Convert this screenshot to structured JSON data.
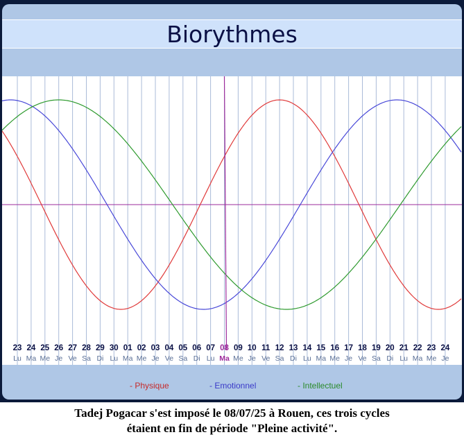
{
  "chart_data": {
    "type": "line",
    "title": "Biorythmes",
    "x": [
      "23",
      "24",
      "25",
      "26",
      "27",
      "28",
      "29",
      "30",
      "01",
      "02",
      "03",
      "04",
      "05",
      "06",
      "07",
      "08",
      "09",
      "10",
      "11",
      "12",
      "13",
      "14",
      "15",
      "16",
      "17",
      "18",
      "19",
      "20",
      "21",
      "22",
      "23",
      "24"
    ],
    "weekdays": [
      "Lu",
      "Ma",
      "Me",
      "Je",
      "Ve",
      "Sa",
      "Di",
      "Lu",
      "Ma",
      "Me",
      "Je",
      "Ve",
      "Sa",
      "Di",
      "Lu",
      "Ma",
      "Me",
      "Je",
      "Ve",
      "Sa",
      "Di",
      "Lu",
      "Ma",
      "Me",
      "Je",
      "Ve",
      "Sa",
      "Di",
      "Lu",
      "Ma",
      "Me",
      "Je"
    ],
    "highlight_day_index": 15,
    "ylim": [
      -1,
      1
    ],
    "series": [
      {
        "name": "- Physique",
        "color": "#e03a3a",
        "period_days": 23,
        "phase_days": 9.75
      },
      {
        "name": "- Emotionnel",
        "color": "#4848d8",
        "period_days": 28,
        "phase_days": 7.5
      },
      {
        "name": "- Intellectuel",
        "color": "#2e9a2e",
        "period_days": 33,
        "phase_days": 5.25
      }
    ],
    "legend_position": "bottom",
    "grid": true
  },
  "colors": {
    "highlight": "#9b2a9b",
    "zero_line": "#9b2a9b",
    "grid": "#aabbd8",
    "day_number": "#0a1045",
    "weekday": "#5a6f96"
  },
  "caption": {
    "line1": "Tadej Pogacar s'est imposé le 08/07/25 à Rouen, ces trois cycles",
    "line2": "étaient en fin de période \"Pleine activité\"."
  }
}
